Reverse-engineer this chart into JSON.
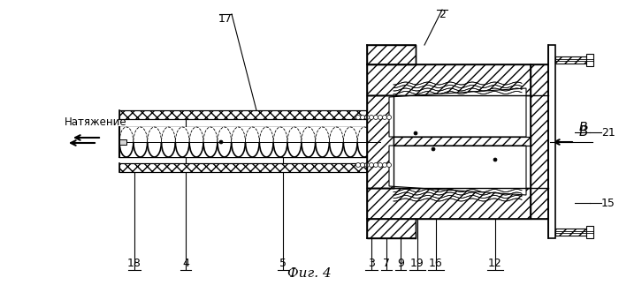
{
  "title": "Фиг. 4",
  "label_natya": "Натяжение",
  "label_B": "В",
  "bg_color": "#ffffff",
  "line_color": "#000000",
  "figsize": [
    7.0,
    3.23
  ],
  "dpi": 100
}
